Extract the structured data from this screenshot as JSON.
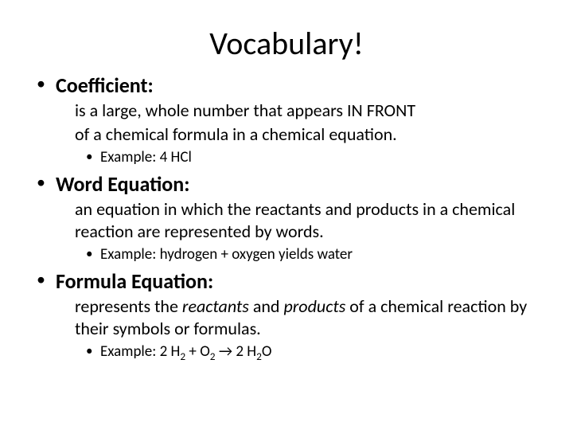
{
  "title": "Vocabulary!",
  "items": [
    {
      "term": "Coefficient:",
      "definition_lines": [
        "is a large, whole number that appears IN FRONT",
        "of a chemical formula in a chemical equation."
      ],
      "example_prefix": "Example:  ",
      "example_plain": "4 HCl"
    },
    {
      "term": "Word Equation:",
      "definition_lines": [
        "an equation in which the reactants and products in a chemical reaction are represented by words."
      ],
      "example_prefix": "Example:  ",
      "example_plain": "hydrogen + oxygen yields water"
    },
    {
      "term": "Formula Equation:",
      "definition_html_parts": {
        "pre": "represents the ",
        "i1": "reactants",
        "mid": " and ",
        "i2": "products",
        "post": " of a chemical reaction by their symbols or formulas."
      },
      "example_prefix": "Example:  ",
      "example_formula": {
        "p1": "2 H",
        "s1": "2",
        "p2": " + O",
        "s2": "2",
        "p3": " → 2 H",
        "s3": "2",
        "p4": "O"
      }
    }
  ],
  "colors": {
    "text": "#000000",
    "background": "#ffffff"
  },
  "typography": {
    "title_fontsize": 40,
    "term_fontsize": 26,
    "body_fontsize": 22,
    "example_fontsize": 19
  }
}
